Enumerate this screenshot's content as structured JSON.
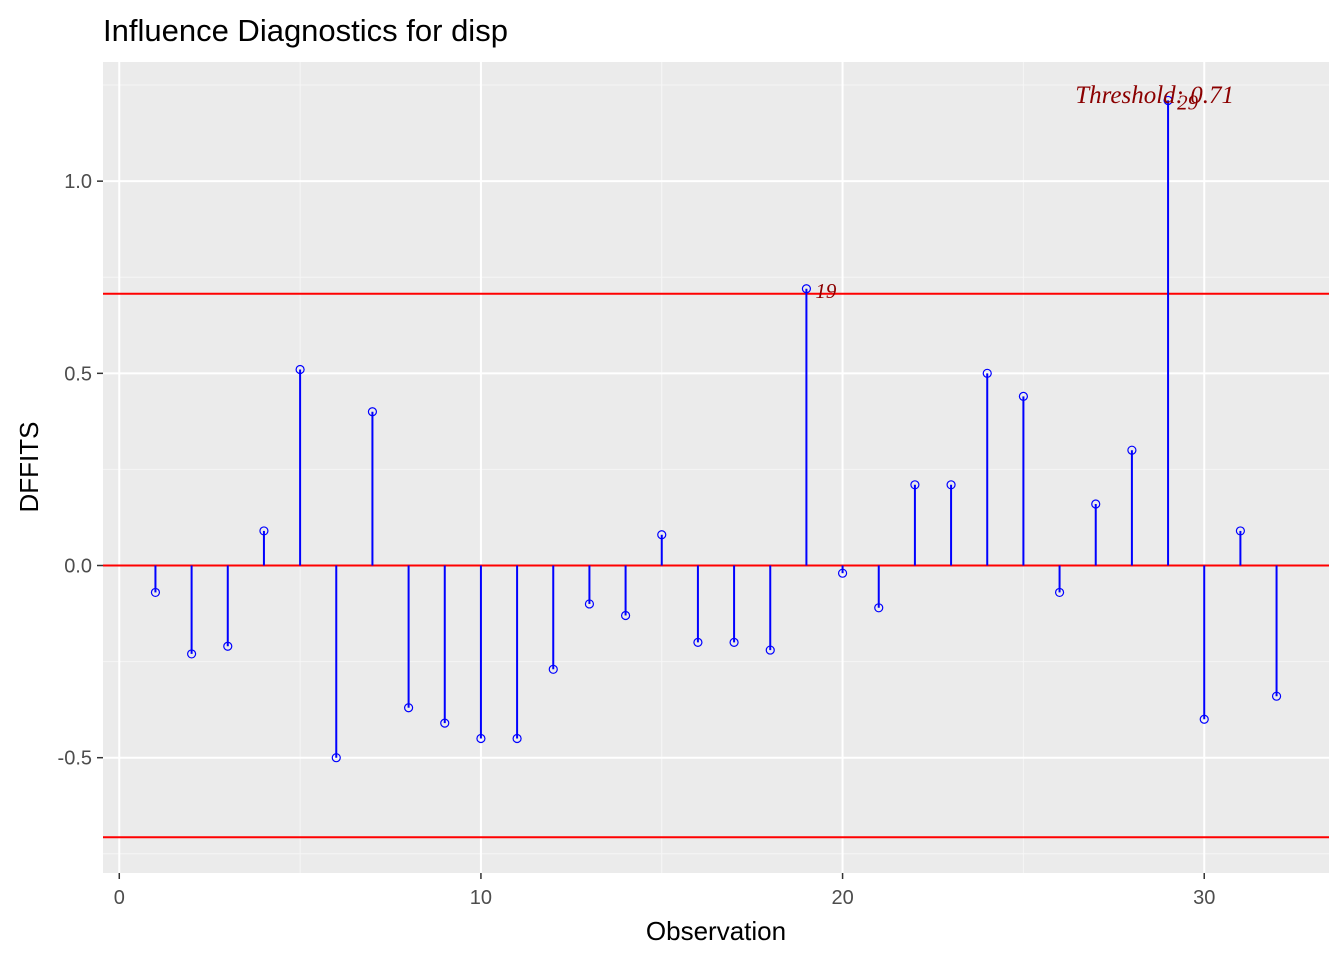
{
  "chart_data": {
    "type": "lollipop",
    "title": "Influence Diagnostics for disp",
    "xlabel": "Observation",
    "ylabel": "DFFITS",
    "xlim": [
      -0.45,
      33.45
    ],
    "ylim": [
      -0.8,
      1.31
    ],
    "x_ticks": [
      0,
      10,
      20,
      30
    ],
    "x_tick_labels": [
      "0",
      "10",
      "20",
      "30"
    ],
    "y_ticks": [
      -0.5,
      0.0,
      0.5,
      1.0
    ],
    "y_tick_labels": [
      "-0.5",
      "0.0",
      "0.5",
      "1.0"
    ],
    "grid": true,
    "threshold": 0.7071,
    "threshold_label": "Threshold: 0.71",
    "threshold_color": "#ff0000",
    "stem_color": "#0000ff",
    "label_color": "#8b0000",
    "panel_background": "#ebebeb",
    "points": [
      {
        "x": 1,
        "y": -0.07
      },
      {
        "x": 2,
        "y": -0.23
      },
      {
        "x": 3,
        "y": -0.21
      },
      {
        "x": 4,
        "y": 0.09
      },
      {
        "x": 5,
        "y": 0.51
      },
      {
        "x": 6,
        "y": -0.5
      },
      {
        "x": 7,
        "y": 0.4
      },
      {
        "x": 8,
        "y": -0.37
      },
      {
        "x": 9,
        "y": -0.41
      },
      {
        "x": 10,
        "y": -0.45
      },
      {
        "x": 11,
        "y": -0.45
      },
      {
        "x": 12,
        "y": -0.27
      },
      {
        "x": 13,
        "y": -0.1
      },
      {
        "x": 14,
        "y": -0.13
      },
      {
        "x": 15,
        "y": 0.08
      },
      {
        "x": 16,
        "y": -0.2
      },
      {
        "x": 17,
        "y": -0.2
      },
      {
        "x": 18,
        "y": -0.22
      },
      {
        "x": 19,
        "y": 0.72
      },
      {
        "x": 20,
        "y": -0.02
      },
      {
        "x": 21,
        "y": -0.11
      },
      {
        "x": 22,
        "y": 0.21
      },
      {
        "x": 23,
        "y": 0.21
      },
      {
        "x": 24,
        "y": 0.5
      },
      {
        "x": 25,
        "y": 0.44
      },
      {
        "x": 26,
        "y": -0.07
      },
      {
        "x": 27,
        "y": 0.16
      },
      {
        "x": 28,
        "y": 0.3
      },
      {
        "x": 29,
        "y": 1.21
      },
      {
        "x": 30,
        "y": -0.4
      },
      {
        "x": 31,
        "y": 0.09
      },
      {
        "x": 32,
        "y": -0.34
      }
    ],
    "labeled_points": [
      {
        "x": 19,
        "label": "19"
      },
      {
        "x": 29,
        "label": "29"
      }
    ]
  }
}
